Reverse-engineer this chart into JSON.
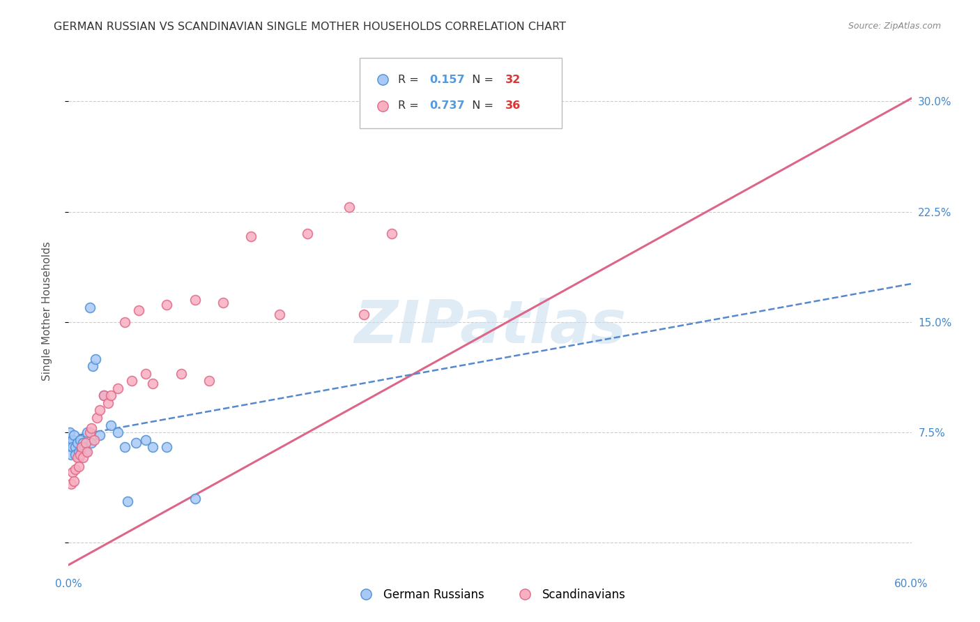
{
  "title": "GERMAN RUSSIAN VS SCANDINAVIAN SINGLE MOTHER HOUSEHOLDS CORRELATION CHART",
  "source": "Source: ZipAtlas.com",
  "ylabel": "Single Mother Households",
  "xlim": [
    0.0,
    0.6
  ],
  "ylim": [
    -0.02,
    0.335
  ],
  "yticks": [
    0.0,
    0.075,
    0.15,
    0.225,
    0.3
  ],
  "ytick_labels": [
    "",
    "7.5%",
    "15.0%",
    "22.5%",
    "30.0%"
  ],
  "xtick_positions": [
    0.0,
    0.1,
    0.2,
    0.3,
    0.4,
    0.5,
    0.6
  ],
  "xtick_labels": [
    "0.0%",
    "",
    "",
    "",
    "",
    "",
    "60.0%"
  ],
  "german_color": "#a8c8f8",
  "german_edge_color": "#5090d0",
  "scandinavian_color": "#f8b0c0",
  "scandinavian_edge_color": "#e06888",
  "trendline_german_color": "#5588cc",
  "trendline_scandinavian_color": "#dd6688",
  "grid_color": "#cccccc",
  "background_color": "#ffffff",
  "title_color": "#333333",
  "axis_label_color": "#555555",
  "right_tick_color": "#4488cc",
  "scatter_size": 100,
  "watermark": "ZIPatlas",
  "german_x": [
    0.001,
    0.002,
    0.002,
    0.003,
    0.003,
    0.004,
    0.005,
    0.005,
    0.006,
    0.007,
    0.007,
    0.008,
    0.009,
    0.01,
    0.011,
    0.012,
    0.013,
    0.015,
    0.016,
    0.017,
    0.019,
    0.022,
    0.025,
    0.03,
    0.035,
    0.04,
    0.042,
    0.048,
    0.055,
    0.06,
    0.07,
    0.09
  ],
  "german_y": [
    0.075,
    0.068,
    0.06,
    0.07,
    0.065,
    0.073,
    0.065,
    0.06,
    0.068,
    0.062,
    0.058,
    0.07,
    0.063,
    0.068,
    0.065,
    0.062,
    0.075,
    0.16,
    0.068,
    0.12,
    0.125,
    0.073,
    0.1,
    0.08,
    0.075,
    0.065,
    0.028,
    0.068,
    0.07,
    0.065,
    0.065,
    0.03
  ],
  "scandinavian_x": [
    0.002,
    0.003,
    0.004,
    0.005,
    0.006,
    0.007,
    0.008,
    0.009,
    0.01,
    0.012,
    0.013,
    0.015,
    0.016,
    0.018,
    0.02,
    0.022,
    0.025,
    0.028,
    0.03,
    0.035,
    0.04,
    0.045,
    0.05,
    0.055,
    0.06,
    0.07,
    0.08,
    0.09,
    0.1,
    0.11,
    0.13,
    0.15,
    0.17,
    0.2,
    0.21,
    0.23
  ],
  "scandinavian_y": [
    0.04,
    0.048,
    0.042,
    0.05,
    0.058,
    0.052,
    0.06,
    0.065,
    0.058,
    0.068,
    0.062,
    0.075,
    0.078,
    0.07,
    0.085,
    0.09,
    0.1,
    0.095,
    0.1,
    0.105,
    0.15,
    0.11,
    0.158,
    0.115,
    0.108,
    0.162,
    0.115,
    0.165,
    0.11,
    0.163,
    0.208,
    0.155,
    0.21,
    0.228,
    0.155,
    0.21
  ],
  "trendline_scand_x0": 0.0,
  "trendline_scand_y0": -0.015,
  "trendline_scand_x1": 0.6,
  "trendline_scand_y1": 0.302,
  "trendline_german_x0": 0.0,
  "trendline_german_y0": 0.072,
  "trendline_german_x1": 0.6,
  "trendline_german_y1": 0.176
}
